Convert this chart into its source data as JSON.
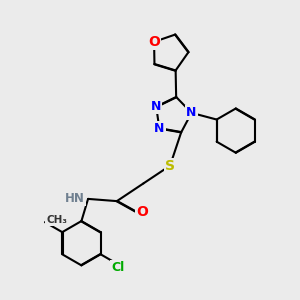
{
  "bg_color": "#ebebeb",
  "bond_color": "#000000",
  "bond_width": 1.5,
  "dbo": 0.018,
  "atom_colors": {
    "N": "#0000ff",
    "O": "#ff0000",
    "S": "#bbbb00",
    "Cl": "#00aa00",
    "H": "#708090",
    "C": "#000000"
  },
  "font_size": 9
}
